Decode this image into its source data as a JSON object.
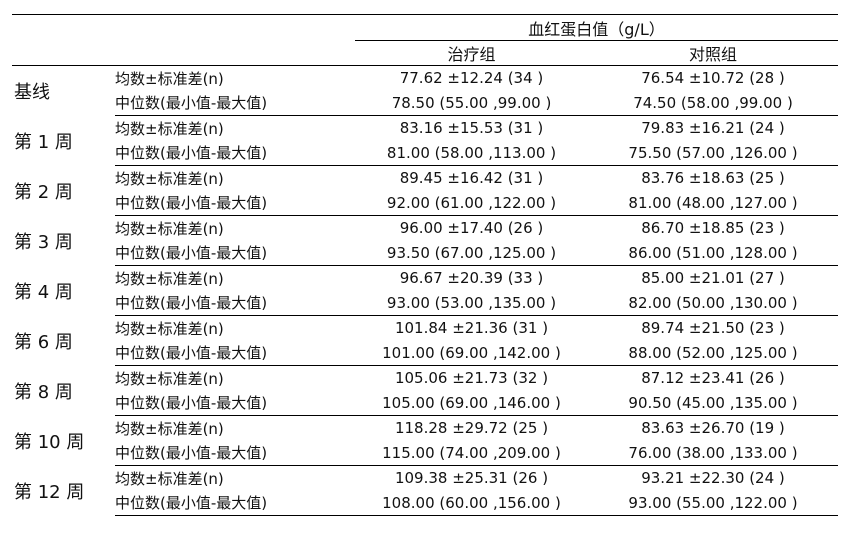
{
  "header": {
    "title": "血红蛋白值（g/L）",
    "group_treatment": "治疗组",
    "group_control": "对照组"
  },
  "rows": [
    {
      "period": "基线",
      "stat1": "均数±标准差(n)",
      "stat2": "中位数(最小值-最大值)",
      "treat1": "77.62 ±12.24 (34 )",
      "treat2": "78.50 (55.00 ,99.00 )",
      "ctrl1": "76.54 ±10.72 (28 )",
      "ctrl2": "74.50 (58.00 ,99.00 )"
    },
    {
      "period": "第 1 周",
      "stat1": "均数±标准差(n)",
      "stat2": "中位数(最小值-最大值)",
      "treat1": "83.16 ±15.53 (31 )",
      "treat2": "81.00 (58.00 ,113.00 )",
      "ctrl1": "79.83 ±16.21 (24 )",
      "ctrl2": "75.50 (57.00 ,126.00 )"
    },
    {
      "period": "第 2 周",
      "stat1": "均数±标准差(n)",
      "stat2": "中位数(最小值-最大值)",
      "treat1": "89.45 ±16.42 (31 )",
      "treat2": "92.00 (61.00 ,122.00 )",
      "ctrl1": "83.76 ±18.63 (25 )",
      "ctrl2": "81.00 (48.00 ,127.00 )"
    },
    {
      "period": "第 3 周",
      "stat1": "均数±标准差(n)",
      "stat2": "中位数(最小值-最大值)",
      "treat1": "96.00 ±17.40 (26 )",
      "treat2": "93.50 (67.00 ,125.00 )",
      "ctrl1": "86.70 ±18.85 (23 )",
      "ctrl2": "86.00 (51.00 ,128.00 )"
    },
    {
      "period": "第 4 周",
      "stat1": "均数±标准差(n)",
      "stat2": "中位数(最小值-最大值)",
      "treat1": "96.67 ±20.39 (33 )",
      "treat2": "93.00 (53.00 ,135.00 )",
      "ctrl1": "85.00 ±21.01 (27 )",
      "ctrl2": "82.00 (50.00 ,130.00 )"
    },
    {
      "period": "第 6 周",
      "stat1": "均数±标准差(n)",
      "stat2": "中位数(最小值-最大值)",
      "treat1": "101.84 ±21.36 (31 )",
      "treat2": "101.00 (69.00 ,142.00 )",
      "ctrl1": "89.74 ±21.50 (23 )",
      "ctrl2": "88.00 (52.00 ,125.00 )"
    },
    {
      "period": "第 8 周",
      "stat1": "均数±标准差(n)",
      "stat2": "中位数(最小值-最大值)",
      "treat1": "105.06 ±21.73 (32 )",
      "treat2": "105.00 (69.00 ,146.00 )",
      "ctrl1": "87.12 ±23.41 (26 )",
      "ctrl2": "90.50 (45.00 ,135.00 )"
    },
    {
      "period": "第 10 周",
      "stat1": "均数±标准差(n)",
      "stat2": "中位数(最小值-最大值)",
      "treat1": "118.28 ±29.72 (25 )",
      "treat2": "115.00 (74.00 ,209.00 )",
      "ctrl1": "83.63 ±26.70 (19 )",
      "ctrl2": "76.00 (38.00 ,133.00 )"
    },
    {
      "period": "第 12 周",
      "stat1": "均数±标准差(n)",
      "stat2": "中位数(最小值-最大值)",
      "treat1": "109.38 ±25.31 (26 )",
      "treat2": "108.00 (60.00 ,156.00 )",
      "ctrl1": "93.21 ±22.30 (24 )",
      "ctrl2": "93.00 (55.00 ,122.00 )"
    }
  ]
}
